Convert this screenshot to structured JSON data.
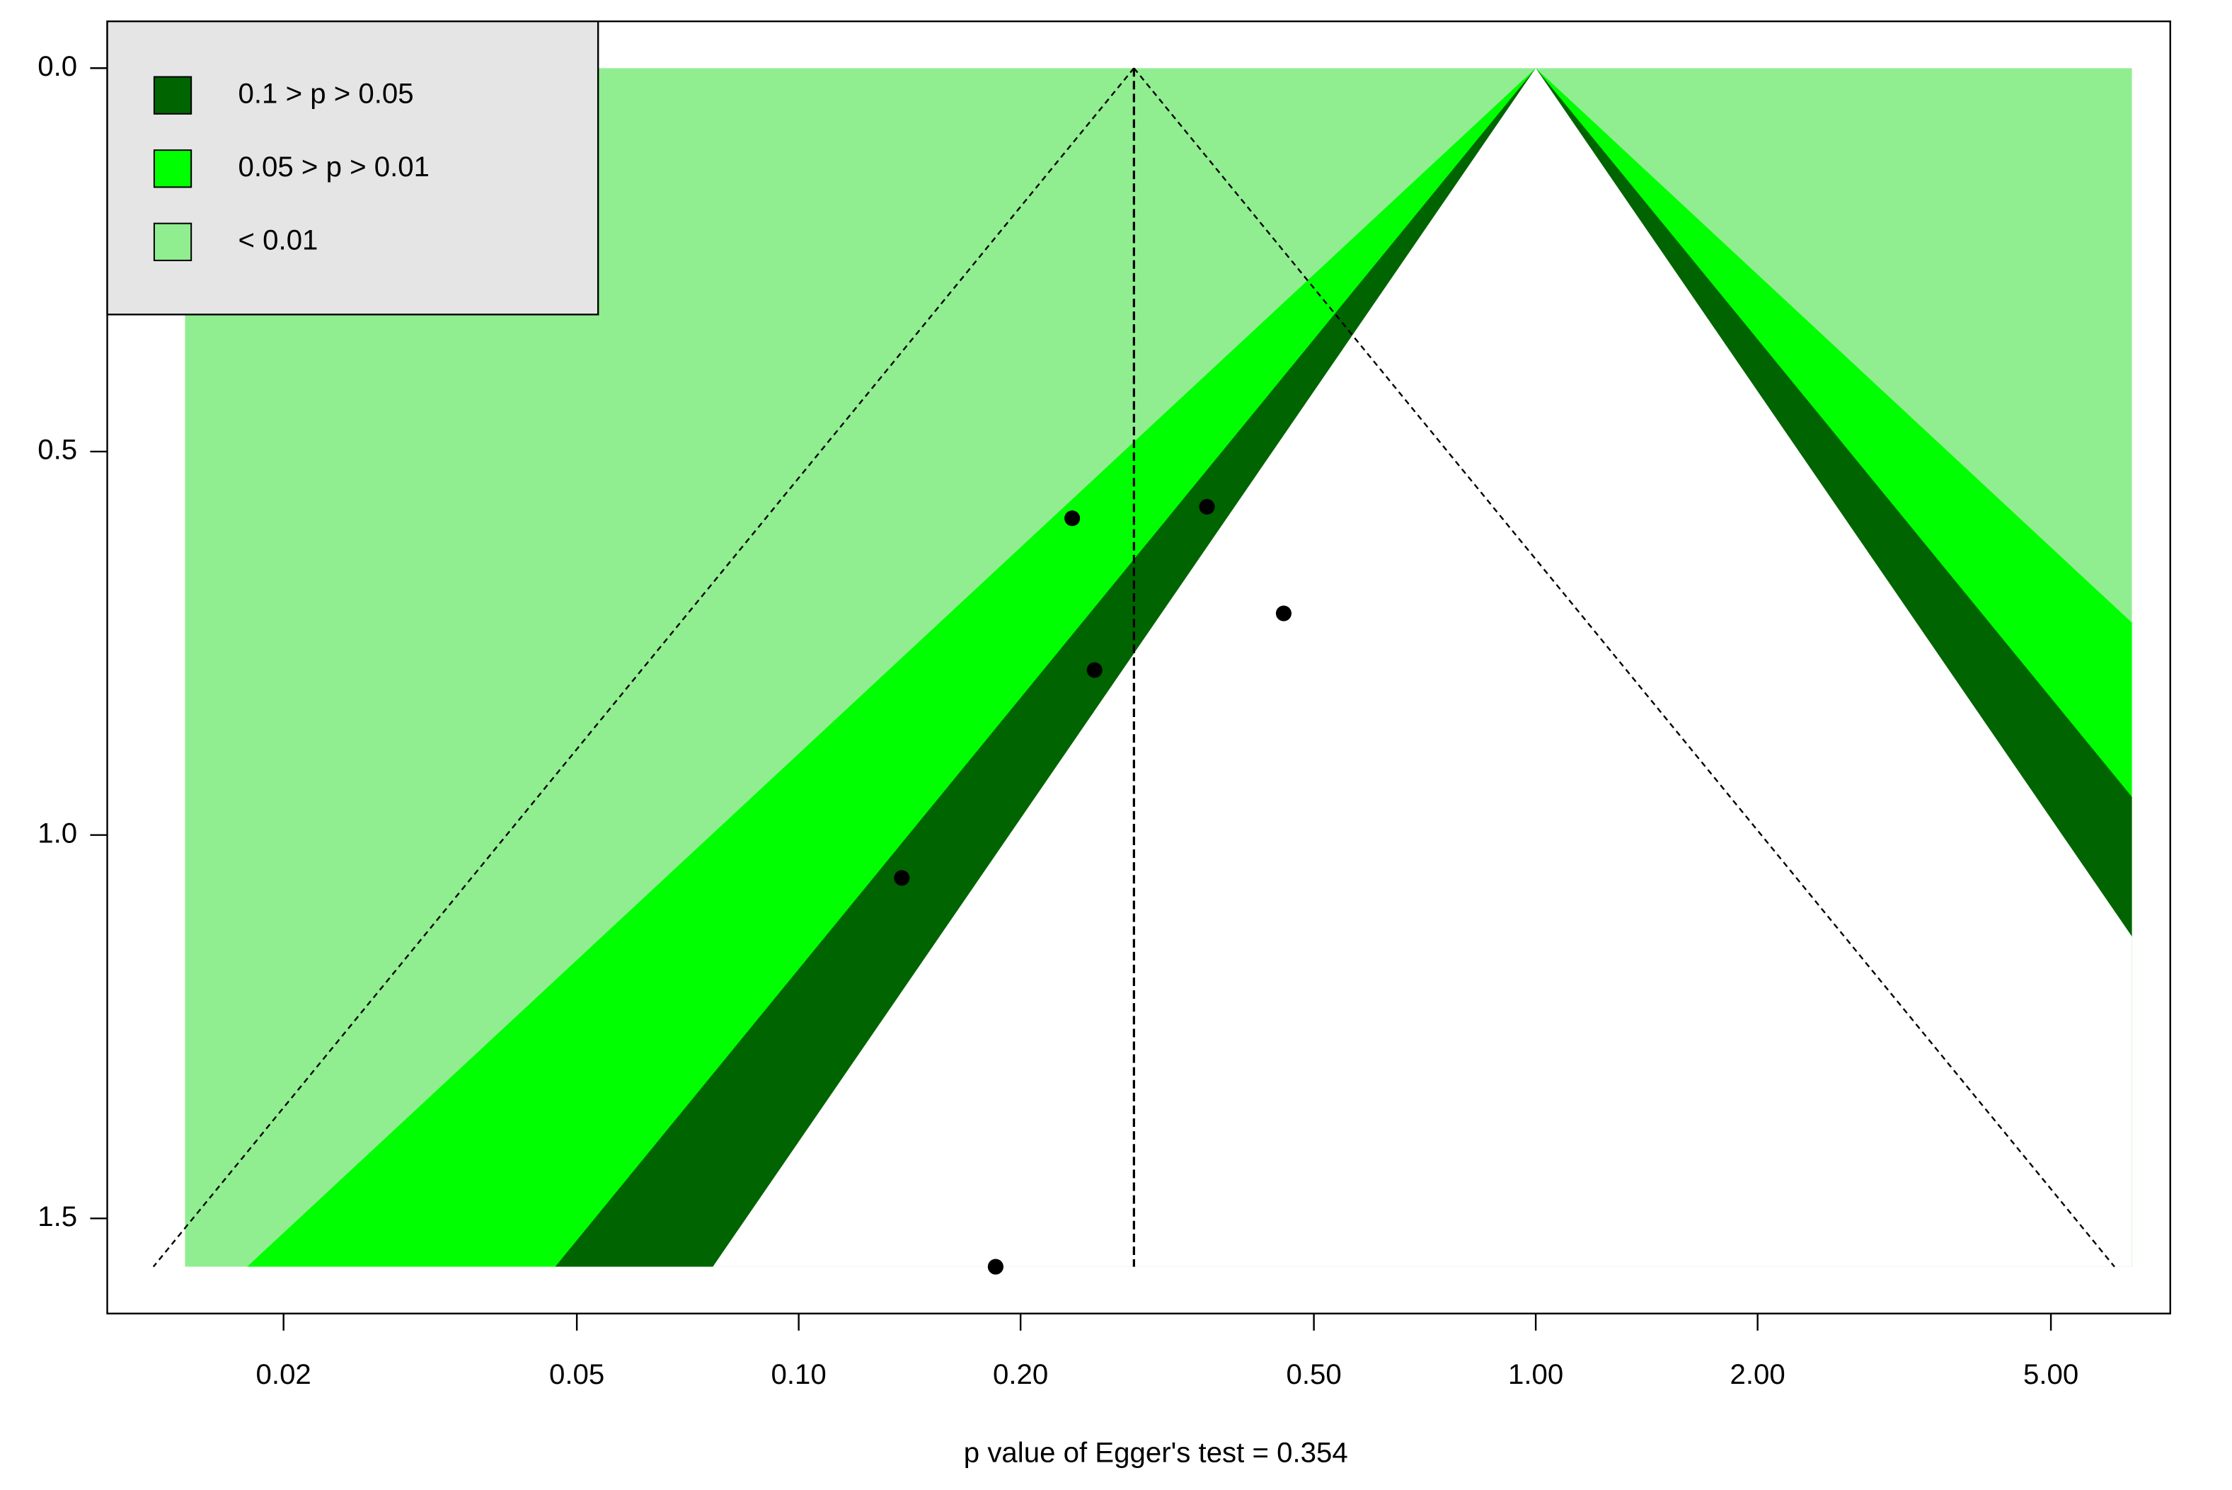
{
  "chart_data": {
    "type": "funnel",
    "xlabel": "p value of Egger's test = 0.354",
    "x_log": true,
    "y_reversed": true,
    "xlim": [
      0.01153,
      7.26
    ],
    "ylim": [
      -0.061,
      1.624
    ],
    "xticks": [
      0.02,
      0.05,
      {
        "value": 0.1,
        "label": "0.10"
      },
      {
        "value": 0.2,
        "label": "0.20"
      },
      {
        "value": 0.5,
        "label": "0.50"
      },
      {
        "value": 1,
        "label": "1.00"
      },
      {
        "value": 2,
        "label": "2.00"
      },
      {
        "value": 5,
        "label": "5.00"
      }
    ],
    "yticks": [
      {
        "value": 0,
        "label": "0.0"
      },
      0.5,
      {
        "value": 1,
        "label": "1.0"
      },
      1.5
    ],
    "shade_xlim": [
      0.0147,
      6.44
    ],
    "pooled_estimate": 0.285,
    "contours": [
      {
        "label": "0.1 > p > 0.05",
        "color": "#006400",
        "p": [
          0.1,
          0.05
        ]
      },
      {
        "label": "0.05 > p > 0.01",
        "color": "#00ff00",
        "p": [
          0.05,
          0.01
        ]
      },
      {
        "label": "< 0.01",
        "color": "#90ee90",
        "p": [
          0.01
        ]
      }
    ],
    "legend_position": "top-left",
    "x": [
      0.235,
      0.358,
      0.455,
      0.252,
      0.138,
      0.185
    ],
    "values": [
      0.587,
      0.572,
      0.711,
      0.785,
      1.056,
      1.563
    ],
    "point_color": "#000000"
  }
}
